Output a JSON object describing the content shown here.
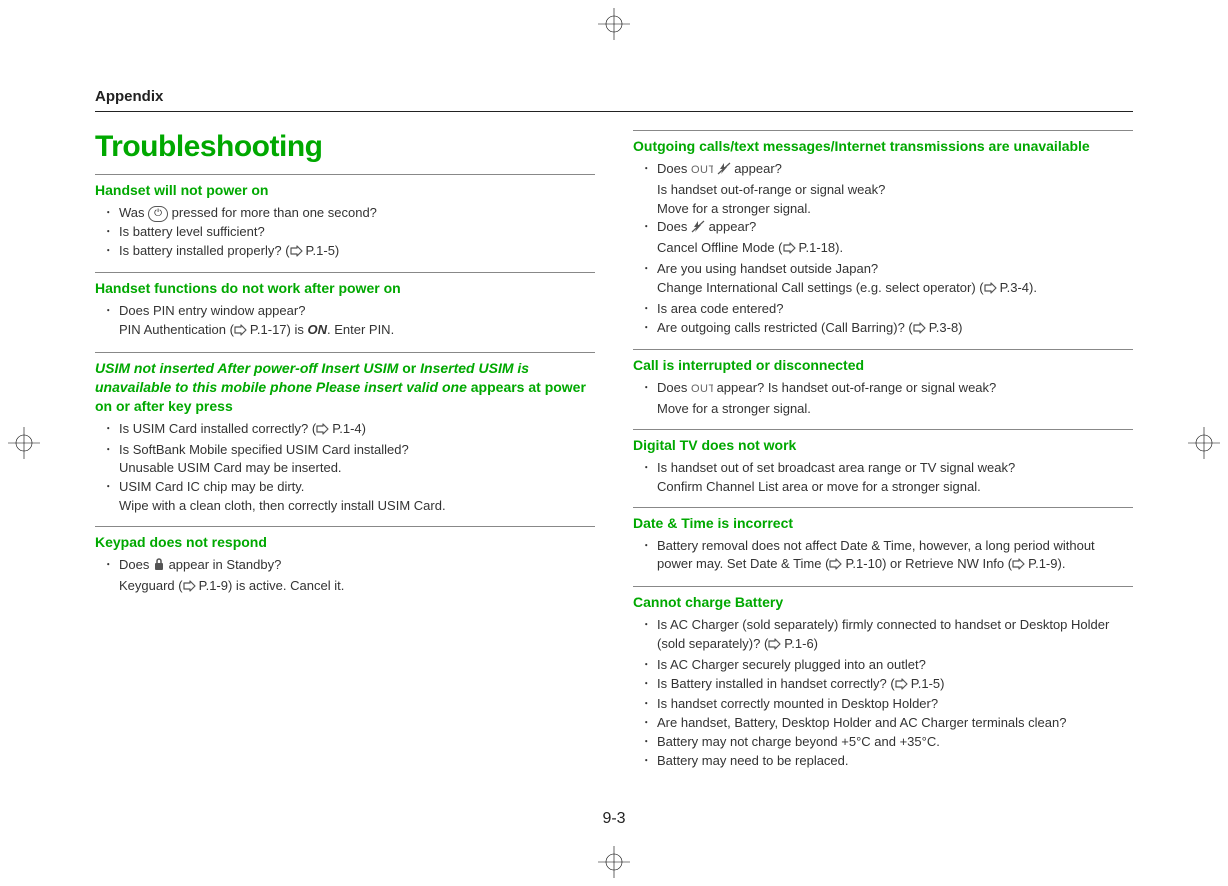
{
  "colors": {
    "accent": "#00a800",
    "text": "#333333",
    "rule": "#888888"
  },
  "header": {
    "label": "Appendix"
  },
  "title": "Troubleshooting",
  "page_number": "9-3",
  "left": [
    {
      "title_plain": "Handset will not power on",
      "items": [
        {
          "pre": "Was ",
          "pill": "⏻",
          "post": " pressed for more than one second?"
        },
        {
          "text": "Is battery level sufficient?"
        },
        {
          "pre": "Is battery installed properly? (",
          "ref": "P.1-5",
          "post": ")"
        }
      ]
    },
    {
      "title_plain": "Handset functions do not work after power on",
      "items": [
        {
          "text": "Does PIN entry window appear?",
          "sub_pre": "PIN Authentication (",
          "sub_ref": "P.1-17",
          "sub_mid": ") is ",
          "sub_bold": "ON",
          "sub_post": ". Enter PIN."
        }
      ]
    },
    {
      "title_mixed": [
        {
          "t": "USIM not inserted After power-off Insert USIM",
          "i": true
        },
        {
          "t": " or ",
          "i": false
        },
        {
          "t": "Inserted USIM is unavailable to this mobile phone Please insert valid one",
          "i": true
        },
        {
          "t": " appears at power on or after key press",
          "i": false
        }
      ],
      "items": [
        {
          "pre": "Is USIM Card installed correctly? (",
          "ref": "P.1-4",
          "post": ")"
        },
        {
          "text": "Is SoftBank Mobile specified USIM Card installed?",
          "sub": "Unusable USIM Card may be inserted."
        },
        {
          "text": "USIM Card IC chip may be dirty.",
          "sub": "Wipe with a clean cloth, then correctly install USIM Card."
        }
      ]
    },
    {
      "title_plain": "Keypad does not respond",
      "items": [
        {
          "pre": "Does ",
          "icon": "lock",
          "post": " appear in Standby?",
          "sub_pre": "Keyguard (",
          "sub_ref": "P.1-9",
          "sub_post": ") is active. Cancel it."
        }
      ]
    }
  ],
  "right": [
    {
      "title_plain": "Outgoing calls/text messages/Internet transmissions are unavailable",
      "items": [
        {
          "pre": "Does ",
          "icon": "out",
          "icon2": "signal-slash",
          "post": " appear?",
          "sub": "Is handset out-of-range or signal weak?",
          "sub2": "Move for a stronger signal."
        },
        {
          "pre": "Does ",
          "icon": "signal-slash",
          "post": " appear?",
          "sub_pre": "Cancel Offline Mode (",
          "sub_ref": "P.1-18",
          "sub_post": ")."
        },
        {
          "text": "Are you using handset outside Japan?",
          "sub_pre": "Change International Call settings (e.g. select operator) (",
          "sub_ref": "P.3-4",
          "sub_post": ")."
        },
        {
          "text": "Is area code entered?"
        },
        {
          "pre": "Are outgoing calls restricted (Call Barring)? (",
          "ref": "P.3-8",
          "post": ")"
        }
      ]
    },
    {
      "title_plain": "Call is interrupted or disconnected",
      "items": [
        {
          "pre": "Does ",
          "icon": "out",
          "post": " appear? Is handset out-of-range or signal weak?",
          "sub": "Move for a stronger signal."
        }
      ]
    },
    {
      "title_plain": "Digital TV does not work",
      "items": [
        {
          "text": "Is handset out of set broadcast area range or TV signal weak?",
          "sub": "Confirm Channel List area or move for a stronger signal."
        }
      ]
    },
    {
      "title_plain": "Date & Time is incorrect",
      "items": [
        {
          "pre": "Battery removal does not affect Date & Time, however, a long period without power may. Set Date & Time (",
          "ref": "P.1-10",
          "mid": ") or Retrieve NW Info (",
          "ref2": "P.1-9",
          "post": ")."
        }
      ]
    },
    {
      "title_plain": "Cannot charge Battery",
      "items": [
        {
          "pre": "Is AC Charger (sold separately) firmly connected to handset or Desktop Holder (sold separately)? (",
          "ref": "P.1-6",
          "post": ")"
        },
        {
          "text": "Is AC Charger securely plugged into an outlet?"
        },
        {
          "pre": "Is Battery installed in handset correctly? (",
          "ref": "P.1-5",
          "post": ")"
        },
        {
          "text": "Is handset correctly mounted in Desktop Holder?"
        },
        {
          "text": "Are handset, Battery, Desktop Holder and AC Charger terminals clean?"
        },
        {
          "text": "Battery may not charge beyond +5°C and +35°C."
        },
        {
          "text": "Battery may need to be replaced."
        }
      ]
    }
  ]
}
